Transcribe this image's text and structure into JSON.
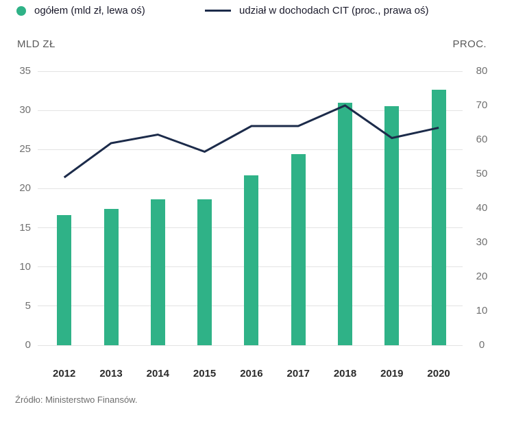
{
  "legend": [
    {
      "label": "ogółem (mld zł, lewa oś)",
      "swatch": "dot",
      "color": "#2FB287"
    },
    {
      "label": "udział w dochodach CIT (proc., prawa oś)",
      "swatch": "line",
      "color": "#1C2B4A"
    }
  ],
  "left_axis": {
    "title": "MLD ZŁ",
    "ticks": [
      0,
      5,
      10,
      15,
      20,
      25,
      30,
      35
    ],
    "max": 35
  },
  "right_axis": {
    "title": "PROC.",
    "ticks": [
      0,
      10,
      20,
      30,
      40,
      50,
      60,
      70,
      80
    ],
    "max": 80
  },
  "source": "Źródło: Ministerstwo Finansów.",
  "colors": {
    "bar_green": "#2FB287",
    "line_navy": "#1C2B4A",
    "gridline": "#E3E3E3",
    "tick_text": "#707070",
    "axis_title_text": "#595959",
    "year_text": "#2B2B2B",
    "legend_text": "#1A1A2B",
    "source_text": "#6E6E6E",
    "background": "#FFFFFF"
  },
  "chart_data": {
    "type": "bar",
    "subtype": "bar+line combo, dual axis",
    "categories": [
      "2012",
      "2013",
      "2014",
      "2015",
      "2016",
      "2017",
      "2018",
      "2019",
      "2020"
    ],
    "series": [
      {
        "name": "ogółem (mld zł, lewa oś)",
        "type": "bar",
        "axis": "left",
        "color": "#2FB287",
        "values": [
          16.6,
          17.4,
          18.6,
          18.6,
          21.7,
          24.4,
          31.0,
          30.5,
          32.6
        ]
      },
      {
        "name": "udział w dochodach CIT (proc., prawa oś)",
        "type": "line",
        "axis": "right",
        "color": "#1C2B4A",
        "values": [
          49.0,
          59.0,
          61.5,
          56.5,
          64.0,
          64.0,
          70.0,
          60.5,
          63.5
        ]
      }
    ],
    "left_ylabel": "MLD ZŁ",
    "right_ylabel": "PROC.",
    "left_ylim": [
      0,
      35
    ],
    "right_ylim": [
      0,
      80
    ],
    "grid": true,
    "legend_position": "top",
    "source": "Źródło: Ministerstwo Finansów."
  }
}
